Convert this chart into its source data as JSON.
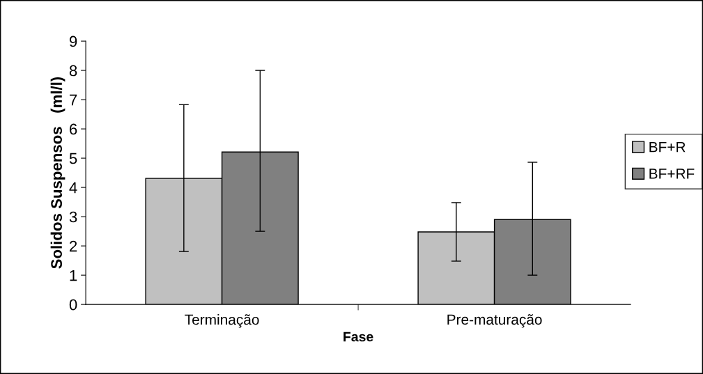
{
  "chart_data": {
    "type": "bar",
    "xlabel": "Fase",
    "ylabel": "Solidos Suspensos   (ml/l)",
    "categories": [
      "Terminação",
      "Pre-maturação"
    ],
    "series": [
      {
        "name": "BF+R",
        "color": "#c0c0c0",
        "values": [
          4.31,
          2.48
        ],
        "errors": [
          [
            1.81,
            6.83
          ],
          [
            1.48,
            3.48
          ]
        ]
      },
      {
        "name": "BF+RF",
        "color": "#808080",
        "values": [
          5.21,
          2.9
        ],
        "errors": [
          [
            2.5,
            8.0
          ],
          [
            1.0,
            4.86
          ]
        ]
      }
    ],
    "ylim": [
      0,
      9
    ],
    "yticks": [
      0,
      1,
      2,
      3,
      4,
      5,
      6,
      7,
      8,
      9
    ],
    "grid": false,
    "legend": "right"
  }
}
